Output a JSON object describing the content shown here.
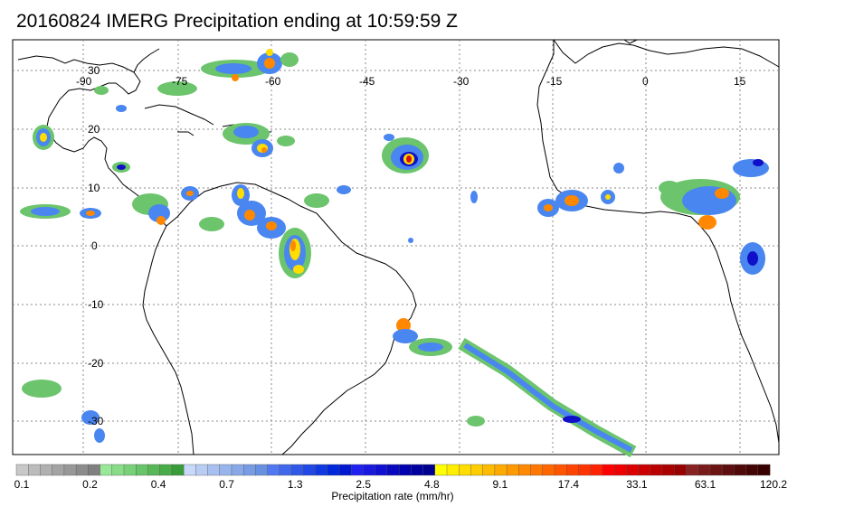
{
  "title": "20160824 IMERG Precipitation ending at 10:59:59 Z",
  "lon_ticks": [
    "-90",
    "-75",
    "-60",
    "-45",
    "-30",
    "-15",
    "0",
    "15"
  ],
  "lat_ticks": [
    "30",
    "20",
    "10",
    "0",
    "-10",
    "-20",
    "-30"
  ],
  "colorbar": {
    "label": "Precipitation rate (mm/hr)",
    "tick_labels": [
      "0.1",
      "0.2",
      "0.4",
      "0.7",
      "1.3",
      "2.5",
      "4.8",
      "9.1",
      "17.4",
      "33.1",
      "63.1",
      "120.2"
    ],
    "colors": [
      "#c8c8c8",
      "#bcbcbc",
      "#b0b0b0",
      "#a4a4a4",
      "#989898",
      "#8c8c8c",
      "#808080",
      "#98e898",
      "#88dc88",
      "#78d078",
      "#68c468",
      "#58b858",
      "#48ac48",
      "#389c38",
      "#c8d8f8",
      "#b8ccf4",
      "#a8c0f0",
      "#98b4ec",
      "#88a8e8",
      "#789ce4",
      "#6890e0",
      "#5078f0",
      "#4068ec",
      "#3058e8",
      "#2048e4",
      "#1038e0",
      "#0028dc",
      "#0018d0",
      "#2020f0",
      "#1818e0",
      "#1010d0",
      "#0808c0",
      "#0000b0",
      "#0000a0",
      "#000090",
      "#ffff00",
      "#ffee00",
      "#ffdd00",
      "#ffcc00",
      "#ffbb00",
      "#ffaa00",
      "#ff9900",
      "#ff8800",
      "#ff7700",
      "#ff6600",
      "#ff5500",
      "#ff4400",
      "#ff3300",
      "#ff2200",
      "#ff0000",
      "#ee0000",
      "#dd0000",
      "#cc0000",
      "#bb0000",
      "#aa0000",
      "#990000",
      "#882222",
      "#7a1a1a",
      "#6c1414",
      "#5e0e0e",
      "#500808",
      "#440404",
      "#380000"
    ]
  },
  "colors": {
    "frame": "#000000",
    "grid": "#888888",
    "coast": "#000000",
    "precip_light": "#6cc46c",
    "precip_blue": "#4a86f0",
    "precip_dark": "#1010c8",
    "precip_yellow": "#ffdd00",
    "precip_orange": "#ff8800",
    "precip_red": "#dd1010"
  }
}
